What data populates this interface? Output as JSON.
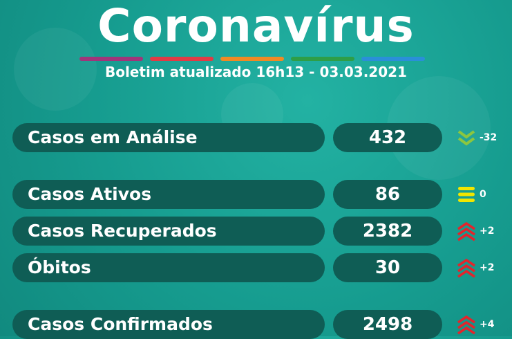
{
  "header": {
    "title": "Coronavírus",
    "subtitle": "Boletim atualizado 16h13 - 03.03.2021",
    "bar_colors": [
      "#a0357a",
      "#e23b45",
      "#f08a24",
      "#2e9e47",
      "#2a8fd8"
    ]
  },
  "colors": {
    "pill": "#0f5d55",
    "down": "#8cc63f",
    "equal": "#f2e600",
    "up": "#e4242b"
  },
  "rows": [
    {
      "label": "Casos em Análise",
      "value": "432",
      "trend": "down",
      "trend_icon": "double-chevron-down-icon",
      "delta": "-32"
    },
    {
      "label": "Casos Ativos",
      "value": "86",
      "trend": "equal",
      "trend_icon": "equal-bars-icon",
      "delta": "0"
    },
    {
      "label": "Casos Recuperados",
      "value": "2382",
      "trend": "up",
      "trend_icon": "triple-chevron-up-icon",
      "delta": "+2"
    },
    {
      "label": "Óbitos",
      "value": "30",
      "trend": "up",
      "trend_icon": "triple-chevron-up-icon",
      "delta": "+2"
    },
    {
      "label": "Casos Confirmados",
      "value": "2498",
      "trend": "up",
      "trend_icon": "triple-chevron-up-icon",
      "delta": "+4"
    }
  ]
}
